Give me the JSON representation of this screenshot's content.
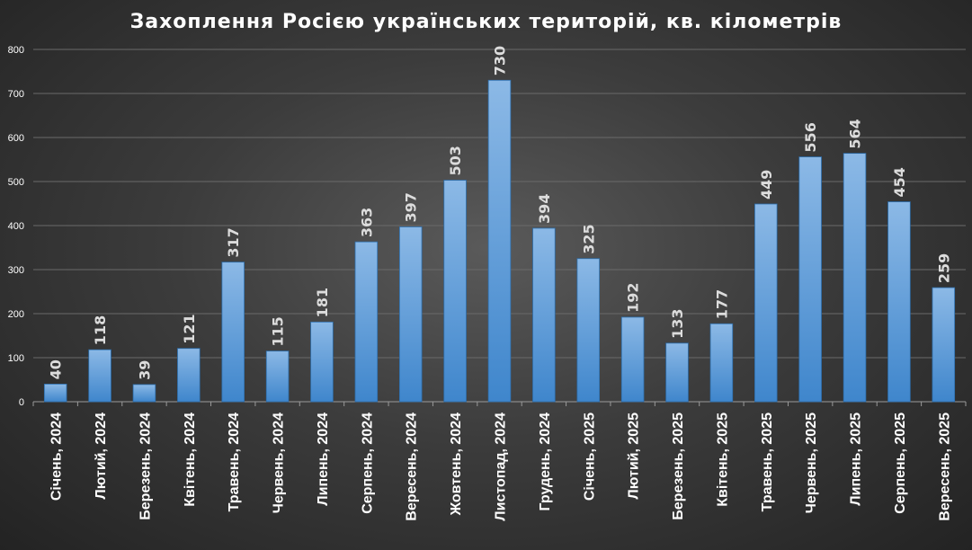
{
  "chart_data": {
    "type": "bar",
    "title": "Захоплення Росією українських територій,  кв. кілометрів",
    "xlabel": "",
    "ylabel": "",
    "ylim": [
      0,
      800
    ],
    "yticks": [
      0,
      100,
      200,
      300,
      400,
      500,
      600,
      700,
      800
    ],
    "grid": true,
    "legend": "none",
    "categories": [
      "Січень, 2024",
      "Лютий, 2024",
      "Березень, 2024",
      "Квітень, 2024",
      "Травень, 2024",
      "Червень, 2024",
      "Липень, 2024",
      "Серпень, 2024",
      "Вересень, 2024",
      "Жовтень, 2024",
      "Листопад, 2024",
      "Грудень, 2024",
      "Січень, 2025",
      "Лютий, 2025",
      "Березень, 2025",
      "Квітень, 2025",
      "Травень, 2025",
      "Червень, 2025",
      "Липень, 2025",
      "Серпень, 2025",
      "Вересень, 2025"
    ],
    "values": [
      40,
      118,
      39,
      121,
      317,
      115,
      181,
      363,
      397,
      503,
      730,
      394,
      325,
      192,
      133,
      177,
      449,
      556,
      564,
      454,
      259
    ],
    "colors": {
      "bar_top": "#8cb9e6",
      "bar_bottom": "#3f86cc",
      "bar_edge": "#2d6fae",
      "grid": "#6a6a6a",
      "axis": "#9a9a9a",
      "tick_text": "#ffffff",
      "label_text": "#dcdcdc"
    }
  }
}
